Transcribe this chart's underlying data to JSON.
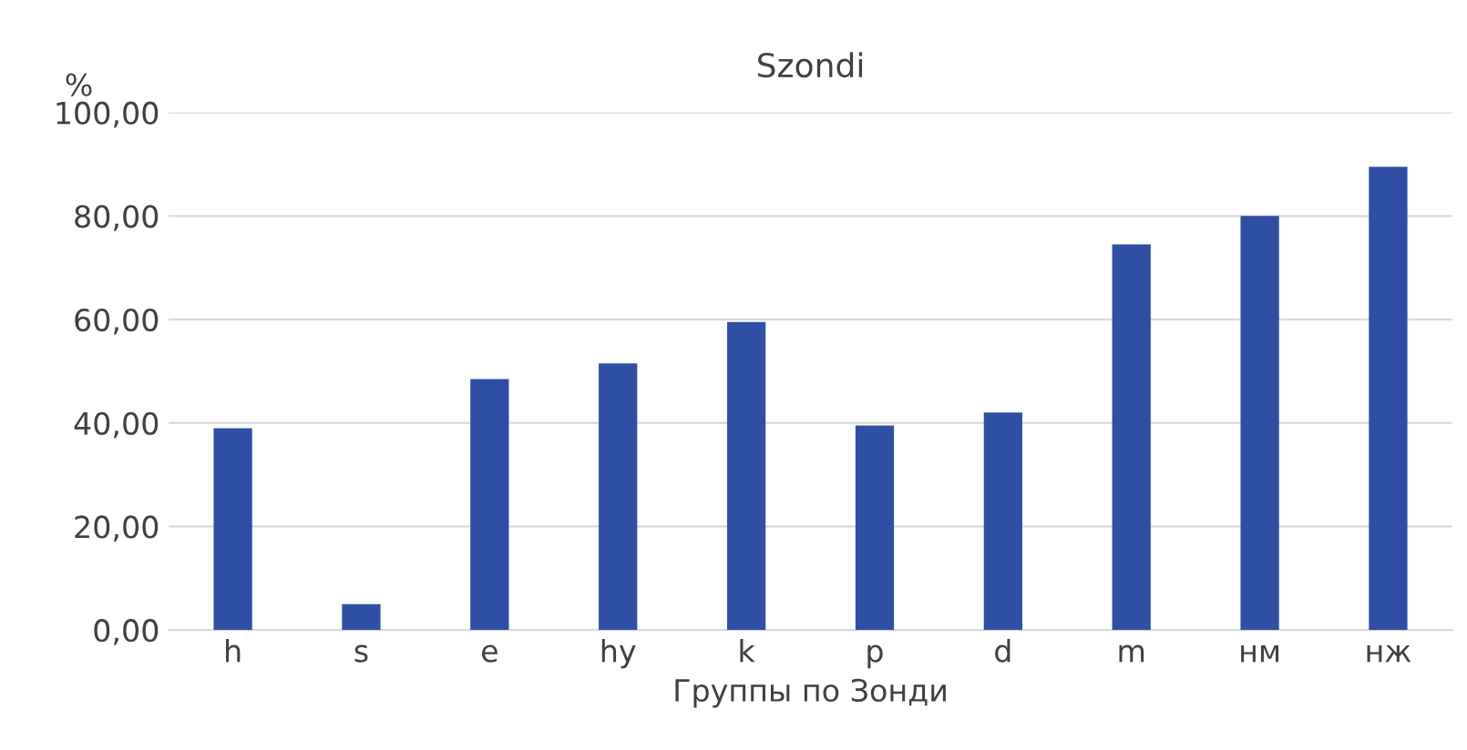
{
  "chart_data": {
    "type": "bar",
    "title": "Szondi",
    "ylabel": "%",
    "xlabel": "Группы по Зонди",
    "categories": [
      "h",
      "s",
      "e",
      "hy",
      "k",
      "p",
      "d",
      "m",
      "нм",
      "нж"
    ],
    "values": [
      39,
      5,
      48.5,
      51.5,
      59.5,
      39.5,
      42,
      74.5,
      80,
      89.5
    ],
    "color": "#2e4fa3",
    "ylim": [
      0,
      100
    ],
    "yticks": [
      {
        "value": 0,
        "label": "0,00"
      },
      {
        "value": 20,
        "label": "20,00"
      },
      {
        "value": 40,
        "label": "40,00"
      },
      {
        "value": 60,
        "label": "60,00"
      },
      {
        "value": 80,
        "label": "80,00"
      },
      {
        "value": 100,
        "label": "100,00"
      }
    ],
    "grid": "y"
  }
}
